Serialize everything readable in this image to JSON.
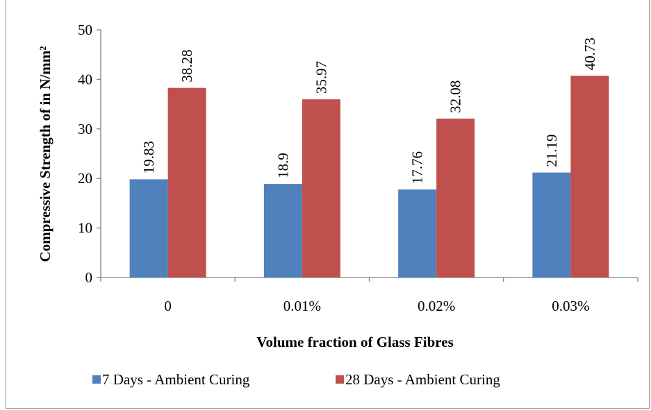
{
  "chart_data": {
    "type": "bar",
    "categories": [
      "0",
      "0.01%",
      "0.02%",
      "0.03%"
    ],
    "series": [
      {
        "name": "7 Days - Ambient Curing",
        "values": [
          19.83,
          18.9,
          17.76,
          21.19
        ],
        "labels": [
          "19.83",
          "18.9",
          "17.76",
          "21.19"
        ],
        "color": "#4f81bd"
      },
      {
        "name": "28 Days - Ambient Curing",
        "values": [
          38.28,
          35.97,
          32.08,
          40.73
        ],
        "labels": [
          "38.28",
          "35.97",
          "32.08",
          "40.73"
        ],
        "color": "#c0504d"
      }
    ],
    "title": "",
    "xlabel": "Volume fraction of Glass Fibres",
    "ylabel": "Compressive Strength of   in N/mm²",
    "ylim": [
      0,
      50
    ],
    "yticks": [
      "0",
      "10",
      "20",
      "30",
      "40",
      "50"
    ],
    "grid": false,
    "legend_position": "bottom"
  }
}
